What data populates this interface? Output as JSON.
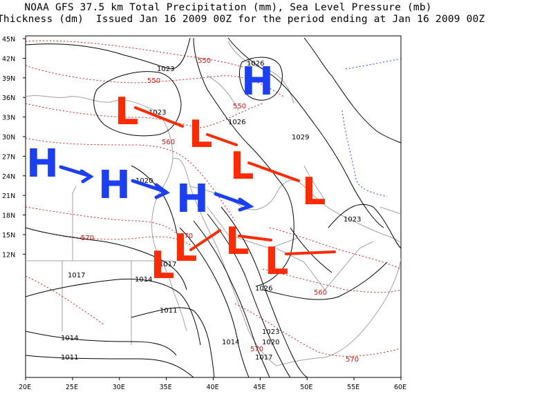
{
  "title_line1": "NOAA GFS 37.5 km Total Precipitation (mm), Sea Level Pressure (mb)",
  "title_line2": "Thickness (dm)  Issued Jan 16 2009 00Z for the period ending at Jan 16 2009 00Z",
  "lat_labels": [
    "45N",
    "42N",
    "39N",
    "36N",
    "33N",
    "30N",
    "27N",
    "24N",
    "21N",
    "18N",
    "15N",
    "12N"
  ],
  "lon_labels": [
    "20E",
    "25E",
    "30E",
    "35E",
    "40E",
    "45E",
    "50E",
    "55E",
    "60E"
  ],
  "pressure_labels": [
    "1026",
    "1023",
    "1023",
    "1026",
    "1029",
    "1020",
    "1023",
    "1017",
    "1017",
    "1014",
    "1026",
    "1011",
    "1014",
    "1011",
    "1023",
    "1014",
    "1020",
    "1017"
  ],
  "thickness_labels": [
    "550",
    "550",
    "550",
    "560",
    "570",
    "570",
    "560",
    "570",
    "570"
  ],
  "system_letters": {
    "high": "H",
    "low": "L"
  },
  "colors": {
    "high": "#1b3ff5",
    "low": "#ff2a00",
    "isobar": "#000000",
    "thickness": "#e01010",
    "coast": "#a0a0a0"
  }
}
